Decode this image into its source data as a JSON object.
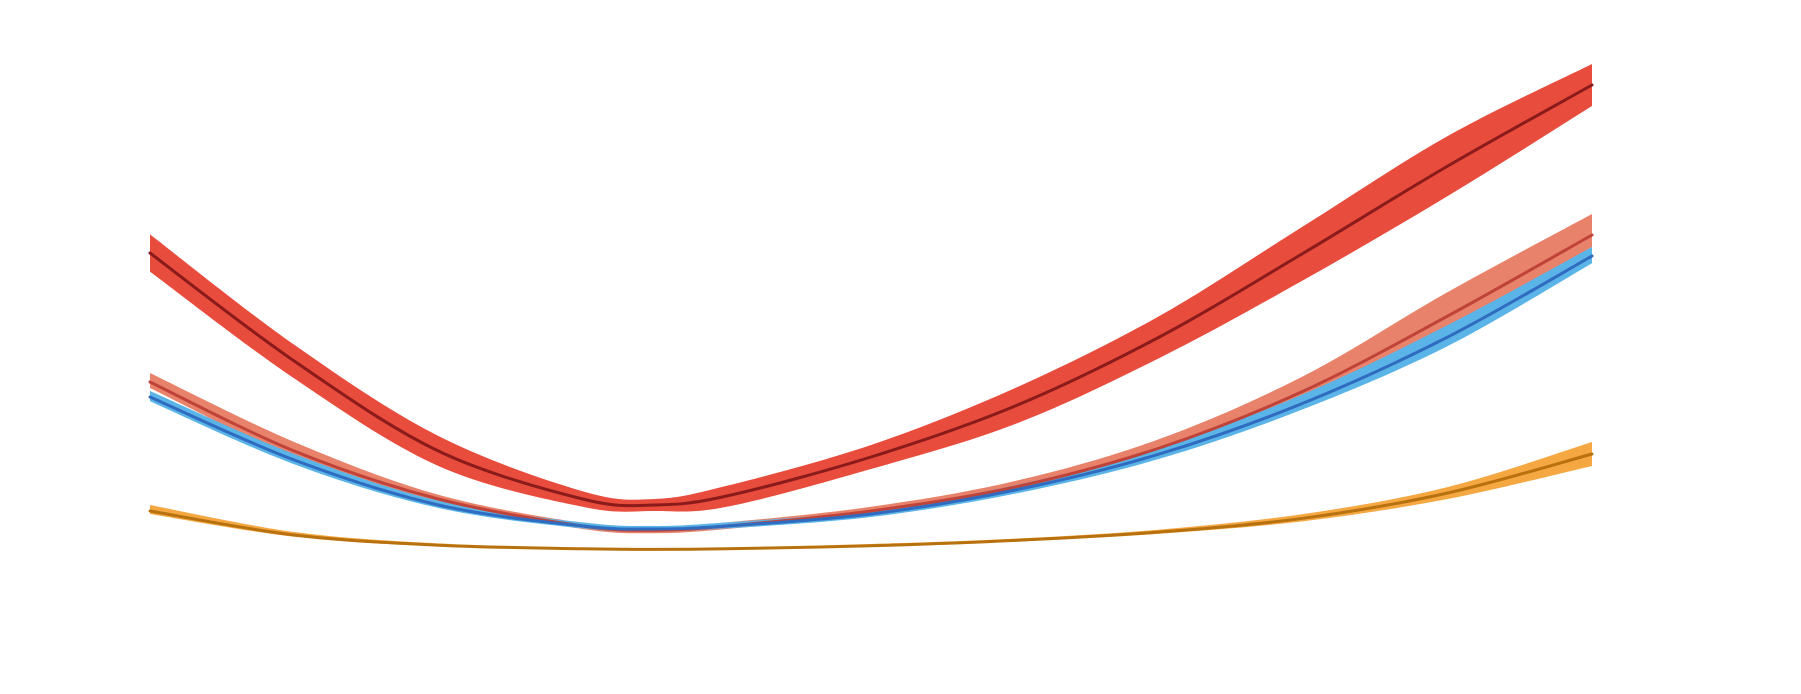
{
  "chart_data": {
    "type": "line",
    "title": "",
    "xlabel": "",
    "ylabel": "",
    "grid": false,
    "legend": "none",
    "xlim": [
      0,
      1
    ],
    "ylim": [
      0,
      1
    ],
    "x": [
      0,
      0.1,
      0.2,
      0.3,
      0.35,
      0.4,
      0.5,
      0.6,
      0.7,
      0.8,
      0.9,
      1.0
    ],
    "series": [
      {
        "color_band": "#e84c3d",
        "color_line": "#8b1a1a",
        "values": [
          0.645,
          0.465,
          0.315,
          0.235,
          0.225,
          0.24,
          0.305,
          0.39,
          0.505,
          0.645,
          0.79,
          0.925
        ],
        "lower": [
          0.614,
          0.436,
          0.29,
          0.222,
          0.215,
          0.222,
          0.285,
          0.36,
          0.47,
          0.6,
          0.74,
          0.89
        ],
        "upper": [
          0.676,
          0.492,
          0.34,
          0.248,
          0.235,
          0.257,
          0.325,
          0.42,
          0.54,
          0.69,
          0.84,
          0.96
        ]
      },
      {
        "color_band": "#e8826a",
        "color_line": "#c0433a",
        "values": [
          0.43,
          0.315,
          0.235,
          0.19,
          0.183,
          0.19,
          0.215,
          0.255,
          0.32,
          0.415,
          0.54,
          0.675
        ],
        "lower": [
          0.42,
          0.305,
          0.23,
          0.185,
          0.178,
          0.185,
          0.21,
          0.25,
          0.31,
          0.4,
          0.52,
          0.655
        ],
        "upper": [
          0.445,
          0.33,
          0.242,
          0.195,
          0.188,
          0.196,
          0.222,
          0.265,
          0.335,
          0.44,
          0.58,
          0.71
        ]
      },
      {
        "color_band": "#5ab4e8",
        "color_line": "#2f6bbf",
        "values": [
          0.405,
          0.3,
          0.225,
          0.19,
          0.185,
          0.19,
          0.21,
          0.25,
          0.31,
          0.395,
          0.505,
          0.64
        ],
        "lower": [
          0.398,
          0.293,
          0.22,
          0.186,
          0.181,
          0.186,
          0.205,
          0.244,
          0.302,
          0.385,
          0.49,
          0.628
        ],
        "upper": [
          0.415,
          0.31,
          0.232,
          0.196,
          0.19,
          0.196,
          0.216,
          0.258,
          0.32,
          0.41,
          0.525,
          0.655
        ]
      },
      {
        "color_band": "#f5a742",
        "color_line": "#b8710f",
        "values": [
          0.215,
          0.175,
          0.158,
          0.152,
          0.151,
          0.152,
          0.157,
          0.166,
          0.18,
          0.203,
          0.245,
          0.31
        ],
        "lower": [
          0.21,
          0.172,
          0.156,
          0.151,
          0.15,
          0.151,
          0.155,
          0.164,
          0.177,
          0.198,
          0.235,
          0.29
        ],
        "upper": [
          0.225,
          0.18,
          0.161,
          0.154,
          0.153,
          0.154,
          0.16,
          0.169,
          0.184,
          0.21,
          0.255,
          0.33
        ]
      }
    ]
  }
}
